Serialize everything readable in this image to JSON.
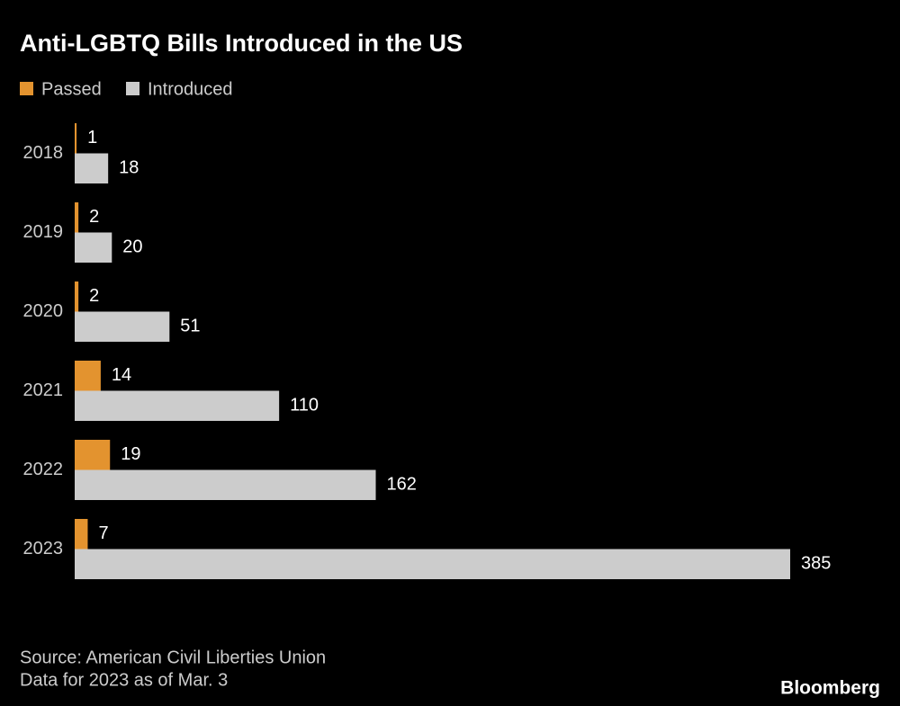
{
  "chart_data": {
    "type": "bar",
    "orientation": "horizontal",
    "title": "Anti-LGBTQ Bills Introduced in the US",
    "categories": [
      "2018",
      "2019",
      "2020",
      "2021",
      "2022",
      "2023"
    ],
    "series": [
      {
        "name": "Passed",
        "color": "#e3932f",
        "values": [
          1,
          2,
          2,
          14,
          19,
          7
        ]
      },
      {
        "name": "Introduced",
        "color": "#cccccc",
        "values": [
          18,
          20,
          51,
          110,
          162,
          385
        ]
      }
    ],
    "source": "Source: American Civil Liberties Union",
    "note": "Data for 2023 as of Mar. 3",
    "branding": "Bloomberg"
  }
}
